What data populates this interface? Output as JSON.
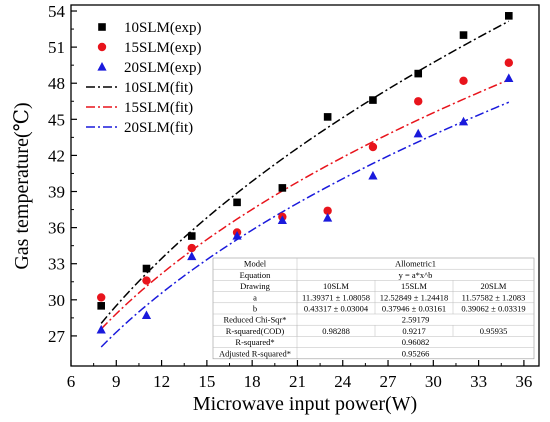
{
  "chart_data": {
    "type": "scatter",
    "xlabel": "Microwave input power(W)",
    "ylabel": "Gas temperature(℃)",
    "xlim": [
      6,
      37
    ],
    "ylim": [
      24.5,
      54.5
    ],
    "xticks": [
      6,
      9,
      12,
      15,
      18,
      21,
      24,
      27,
      30,
      33,
      36
    ],
    "yticks": [
      27,
      30,
      33,
      36,
      39,
      42,
      45,
      48,
      51,
      54
    ],
    "grid": false,
    "legend_position": "top-left",
    "series": [
      {
        "name": "10SLM(exp)",
        "kind": "scatter",
        "marker": "square",
        "color": "#000000",
        "x": [
          8,
          11,
          14,
          17,
          20,
          23,
          26,
          29,
          32,
          35
        ],
        "y": [
          29.5,
          32.6,
          35.3,
          38.1,
          39.3,
          45.2,
          46.6,
          48.8,
          52.0,
          53.6
        ]
      },
      {
        "name": "15SLM(exp)",
        "kind": "scatter",
        "marker": "circle",
        "color": "#e8141c",
        "x": [
          8,
          11,
          14,
          17,
          20,
          23,
          26,
          29,
          32,
          35
        ],
        "y": [
          30.2,
          31.6,
          34.3,
          35.6,
          36.9,
          37.4,
          42.7,
          46.5,
          48.2,
          49.7
        ]
      },
      {
        "name": "20SLM(exp)",
        "kind": "scatter",
        "marker": "triangle",
        "color": "#1a1adc",
        "x": [
          8,
          11,
          14,
          17,
          20,
          23,
          26,
          29,
          32,
          35
        ],
        "y": [
          27.5,
          28.7,
          33.6,
          35.3,
          36.6,
          36.8,
          40.3,
          43.8,
          44.8,
          48.4
        ]
      },
      {
        "name": "10SLM(fit)",
        "kind": "fit",
        "dash": "dashdot",
        "color": "#000000",
        "a": 11.39371,
        "b": 0.43317,
        "x_range": [
          8,
          35
        ]
      },
      {
        "name": "15SLM(fit)",
        "kind": "fit",
        "dash": "dashdot",
        "color": "#e8141c",
        "a": 12.52849,
        "b": 0.37946,
        "x_range": [
          8,
          35
        ]
      },
      {
        "name": "20SLM(fit)",
        "kind": "fit",
        "dash": "dashdot",
        "color": "#1a1adc",
        "a": 11.57582,
        "b": 0.39062,
        "x_range": [
          8,
          35
        ]
      }
    ],
    "fit_table": {
      "rows": [
        [
          "Model",
          "Allometric1"
        ],
        [
          "Equation",
          "y = a*x^b"
        ],
        [
          "Drawing",
          "10SLM",
          "15SLM",
          "20SLM"
        ],
        [
          "a",
          "11.39371 ± 1.08058",
          "12.52849 ± 1.24418",
          "11.57582 ± 1.2083"
        ],
        [
          "b",
          "0.43317 ± 0.03004",
          "0.37946 ± 0.03161",
          "0.39062 ± 0.03319"
        ],
        [
          "Reduced Chi-Sqr*",
          "2.59179"
        ],
        [
          "R-squared(COD)",
          "0.98288",
          "0.9217",
          "0.95935"
        ],
        [
          "R-squared*",
          "0.96082"
        ],
        [
          "Adjusted R-squared*",
          "0.95266"
        ]
      ]
    }
  }
}
